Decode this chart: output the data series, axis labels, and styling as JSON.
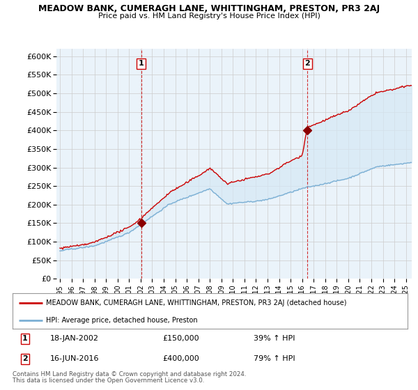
{
  "title": "MEADOW BANK, CUMERAGH LANE, WHITTINGHAM, PRESTON, PR3 2AJ",
  "subtitle": "Price paid vs. HM Land Registry's House Price Index (HPI)",
  "ylabel_ticks": [
    "£0",
    "£50K",
    "£100K",
    "£150K",
    "£200K",
    "£250K",
    "£300K",
    "£350K",
    "£400K",
    "£450K",
    "£500K",
    "£550K",
    "£600K"
  ],
  "ytick_values": [
    0,
    50000,
    100000,
    150000,
    200000,
    250000,
    300000,
    350000,
    400000,
    450000,
    500000,
    550000,
    600000
  ],
  "xlim_start": 1994.7,
  "xlim_end": 2025.5,
  "ylim_min": 0,
  "ylim_max": 620000,
  "sale1_year": 2002.05,
  "sale1_price": 150000,
  "sale1_label": "1",
  "sale1_date": "18-JAN-2002",
  "sale1_hpi": "39% ↑ HPI",
  "sale2_year": 2016.46,
  "sale2_price": 400000,
  "sale2_label": "2",
  "sale2_date": "16-JUN-2016",
  "sale2_hpi": "79% ↑ HPI",
  "hpi_line_color": "#7bafd4",
  "property_line_color": "#cc0000",
  "fill_color": "#d6e8f5",
  "marker_color": "#8b0000",
  "vline_color": "#cc0000",
  "background_color": "#ffffff",
  "chart_bg_color": "#eaf3fa",
  "grid_color": "#cccccc",
  "legend_line1": "MEADOW BANK, CUMERAGH LANE, WHITTINGHAM, PRESTON, PR3 2AJ (detached house)",
  "legend_line2": "HPI: Average price, detached house, Preston",
  "footer1": "Contains HM Land Registry data © Crown copyright and database right 2024.",
  "footer2": "This data is licensed under the Open Government Licence v3.0."
}
